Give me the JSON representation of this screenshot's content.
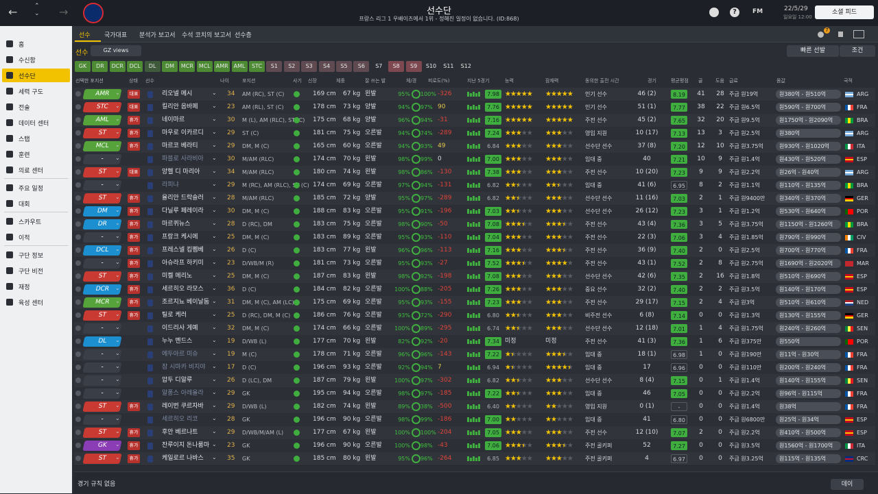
{
  "header": {
    "title": "선수단",
    "subtitle": "프랑스 리그 1 우배이즈에서 1위 - 정해진 일정이 없습니다. (ID:868)",
    "fm_label": "FM",
    "date": "22/5/29",
    "time": "일요일 12:00",
    "social_button": "소셜 피드",
    "notification_count": 7
  },
  "sidebar": [
    [
      "홈",
      "수신함",
      "선수단",
      "세력 구도",
      "전술",
      "데이터 센터",
      "스탭",
      "훈련",
      "의료 센터"
    ],
    [
      "주요 일정",
      "대회"
    ],
    [
      "스카우트",
      "이적"
    ],
    [
      "구단 정보",
      "구단 비전",
      "재정",
      "육성 센터"
    ]
  ],
  "sidebar_active": [
    0,
    2
  ],
  "subnav": [
    "선수",
    "국가대표",
    "분석가 보고서",
    "수석 코치의 보고서",
    "선수층"
  ],
  "toolbar": {
    "section": "선수",
    "view": "GZ views",
    "quick_pick": "빠른 선발",
    "filter": "조건"
  },
  "position_filters": [
    {
      "label": "GK",
      "color": "#4d8a34"
    },
    {
      "label": "DR",
      "color": "#4d8a34"
    },
    {
      "label": "DCR",
      "color": "#4d8a34"
    },
    {
      "label": "DCL",
      "color": "#4d8a34"
    },
    {
      "label": "DL",
      "color": "#3f5a3a"
    },
    {
      "label": "DM",
      "color": "#4d8a34"
    },
    {
      "label": "MCR",
      "color": "#4d8a34"
    },
    {
      "label": "MCL",
      "color": "#4d8a34"
    },
    {
      "label": "AMR",
      "color": "#4d8a34"
    },
    {
      "label": "AML",
      "color": "#4d8a34"
    },
    {
      "label": "STC",
      "color": "#4d8a34"
    },
    {
      "label": "S1",
      "color": "#5e4a50"
    },
    {
      "label": "S2",
      "color": "#5e4a50"
    },
    {
      "label": "S3",
      "color": "#5e4a50"
    },
    {
      "label": "S4",
      "color": "#5e4a50"
    },
    {
      "label": "S5",
      "color": "#5e4a50"
    },
    {
      "label": "S6",
      "color": "#5e4a50"
    },
    {
      "label": "S7"
    },
    {
      "label": "S8",
      "color": "#7d4850"
    },
    {
      "label": "S9",
      "color": "#7d4850"
    },
    {
      "label": "S10"
    },
    {
      "label": "S11"
    },
    {
      "label": "S12"
    }
  ],
  "columns": [
    "선택한 포지션",
    "상태",
    "선수",
    "나이",
    "포지션",
    "사기",
    "신장",
    "체중",
    "잘 쓰는 발",
    "체/경",
    "피로도(%)",
    "지난 5경기",
    "능력",
    "잠재력",
    "동의한 출전 시간",
    "경기",
    "평균평점",
    "골",
    "도움",
    "급료",
    "몸값",
    "국적"
  ],
  "flags": {
    "ARG": {
      "dir": "h",
      "colors": [
        "#75aadb",
        "#ffffff",
        "#75aadb"
      ]
    },
    "FRA": {
      "dir": "v",
      "colors": [
        "#0055a4",
        "#ffffff",
        "#ef4135"
      ]
    },
    "BRA": {
      "dir": "v",
      "colors": [
        "#009c3b",
        "#ffdf00",
        "#009c3b"
      ]
    },
    "ITA": {
      "dir": "v",
      "colors": [
        "#009246",
        "#ffffff",
        "#ce2b37"
      ]
    },
    "ESP": {
      "dir": "h",
      "colors": [
        "#c60b1e",
        "#ffc400",
        "#c60b1e"
      ]
    },
    "GER": {
      "dir": "h",
      "colors": [
        "#000000",
        "#dd0000",
        "#ffce00"
      ]
    },
    "POR": {
      "dir": "v",
      "colors": [
        "#006600",
        "#ff0000",
        "#ff0000"
      ]
    },
    "CIV": {
      "dir": "v",
      "colors": [
        "#f77f00",
        "#ffffff",
        "#009e60"
      ]
    },
    "MAR": {
      "dir": "v",
      "colors": [
        "#c1272d",
        "#c1272d",
        "#c1272d"
      ]
    },
    "NED": {
      "dir": "h",
      "colors": [
        "#ae1c28",
        "#ffffff",
        "#21468b"
      ]
    },
    "SEN": {
      "dir": "v",
      "colors": [
        "#00853f",
        "#fdef42",
        "#e31b23"
      ]
    },
    "CRC": {
      "dir": "h",
      "colors": [
        "#002b7f",
        "#ce1126",
        "#002b7f"
      ]
    }
  },
  "rows": [
    {
      "sel": "AMR",
      "sel_color": "#55a33a",
      "status": "대표",
      "name": "리오넬 메시",
      "age": 34,
      "pos": "AM (RC), ST (C)",
      "height": "169 cm",
      "weight": "67 kg",
      "foot": "왼발",
      "cond": "95%",
      "sharp": "100%",
      "fatigue": -326,
      "last5": "7.98",
      "ability": 5,
      "potential": 5,
      "time": "인기 선수",
      "apps": "46 (2)",
      "avg": "8.19",
      "goals": 41,
      "assists": 28,
      "wage": "주급 원19억",
      "value": "원380억 - 원510억",
      "nat": "ARG"
    },
    {
      "sel": "STC",
      "sel_color": "#c93a32",
      "status": "대표",
      "name": "킬리안 음바페",
      "age": 23,
      "pos": "AM (RL), ST (C)",
      "height": "178 cm",
      "weight": "73 kg",
      "foot": "양발",
      "cond": "94%",
      "sharp": "97%",
      "fatigue": 90,
      "last5": "7.76",
      "ability": 5,
      "potential": 5,
      "time": "인기 선수",
      "apps": "51 (1)",
      "avg": "7.77",
      "goals": 38,
      "assists": 22,
      "wage": "주급 원6.5억",
      "value": "원590억 - 원700억",
      "nat": "FRA"
    },
    {
      "sel": "AML",
      "sel_color": "#55a33a",
      "status": "휴가",
      "name": "네이마르",
      "age": 30,
      "pos": "M (L), AM (RLC), ST (C)",
      "height": "175 cm",
      "weight": "68 kg",
      "foot": "양발",
      "cond": "96%",
      "sharp": "94%",
      "fatigue": -31,
      "last5": "7.16",
      "ability": 5,
      "potential": 5,
      "time": "주전 선수",
      "apps": "45 (2)",
      "avg": "7.65",
      "goals": 32,
      "assists": 20,
      "wage": "주급 원9.5억",
      "value": "원1750억 - 원2090억",
      "nat": "BRA"
    },
    {
      "sel": "ST",
      "sel_color": "#c93a32",
      "status": "휴가",
      "name": "마우로 이카르디",
      "age": 29,
      "pos": "ST (C)",
      "height": "181 cm",
      "weight": "75 kg",
      "foot": "오른발",
      "cond": "94%",
      "sharp": "74%",
      "fatigue": -289,
      "last5": "7.24",
      "ability": 3,
      "potential": 3,
      "time": "영입 지원",
      "apps": "10 (17)",
      "avg": "7.13",
      "goals": 13,
      "assists": 3,
      "wage": "주급 원2.5억",
      "value": "원380억",
      "nat": "ARG"
    },
    {
      "sel": "MCL",
      "sel_color": "#55a33a",
      "status": "휴가",
      "name": "마르코 베라티",
      "age": 29,
      "pos": "DM, M (C)",
      "height": "165 cm",
      "weight": "60 kg",
      "foot": "오른발",
      "cond": "94%",
      "sharp": "93%",
      "fatigue": 49,
      "last5": "6.84",
      "ability": 3,
      "potential": 3,
      "time": "선수단 선수",
      "apps": "37 (8)",
      "avg": "7.20",
      "goals": 12,
      "assists": 10,
      "wage": "주급 원3.75억",
      "value": "원930억 - 원1020억",
      "nat": "ITA"
    },
    {
      "sel": "-",
      "sel_color": "#3a3e46",
      "name": "파블로 사라비아",
      "dim": true,
      "age": 30,
      "pos": "M/AM (RLC)",
      "height": "174 cm",
      "weight": "70 kg",
      "foot": "왼발",
      "cond": "98%",
      "sharp": "99%",
      "fatigue": 0,
      "last5": "7.00",
      "ability": 3,
      "potential": 3,
      "time": "임대 중",
      "apps": "40",
      "avg": "7.21",
      "goals": 10,
      "assists": 9,
      "wage": "주급 원1.4억",
      "value": "원430억 - 원520억",
      "nat": "ESP"
    },
    {
      "sel": "ST",
      "sel_color": "#c93a32",
      "status": "대표",
      "name": "앙헬 디 마리아",
      "age": 34,
      "pos": "M/AM (RLC)",
      "height": "180 cm",
      "weight": "74 kg",
      "foot": "왼발",
      "cond": "98%",
      "sharp": "86%",
      "fatigue": -130,
      "last5": "7.38",
      "ability": 3,
      "potential": 3,
      "time": "주전 선수",
      "apps": "10 (20)",
      "avg": "7.23",
      "goals": 9,
      "assists": 9,
      "wage": "주급 원2.2억",
      "value": "원26억 - 원40억",
      "nat": "ARG"
    },
    {
      "sel": "-",
      "sel_color": "#3a3e46",
      "name": "라피냐",
      "dim": true,
      "age": 29,
      "pos": "M (RC), AM (RLC), ST (C)",
      "height": "174 cm",
      "weight": "69 kg",
      "foot": "오른발",
      "cond": "97%",
      "sharp": "94%",
      "fatigue": -131,
      "last5": "6.82",
      "ability": 2.5,
      "potential": 2.5,
      "time": "임대 중",
      "apps": "41 (6)",
      "avg": "6.95",
      "goals": 8,
      "assists": 2,
      "wage": "주급 원1.1억",
      "value": "원110억 - 원135억",
      "nat": "BRA"
    },
    {
      "sel": "ST",
      "sel_color": "#c93a32",
      "status": "휴가",
      "name": "율리안 드락슬러",
      "age": 28,
      "pos": "M/AM (RLC)",
      "height": "185 cm",
      "weight": "72 kg",
      "foot": "양발",
      "cond": "95%",
      "sharp": "97%",
      "fatigue": -289,
      "last5": "6.82",
      "ability": 2.5,
      "potential": 3,
      "time": "선수단 선수",
      "apps": "11 (16)",
      "avg": "7.03",
      "goals": 2,
      "assists": 1,
      "wage": "주급 원9400만",
      "value": "원340억 - 원370억",
      "nat": "GER"
    },
    {
      "sel": "DM",
      "sel_color": "#1c8fd0",
      "status": "휴가",
      "name": "다닐루 페레이라",
      "age": 30,
      "pos": "DM, M (C)",
      "height": "188 cm",
      "weight": "83 kg",
      "foot": "오른발",
      "cond": "95%",
      "sharp": "91%",
      "fatigue": -196,
      "last5": "7.03",
      "ability": 2.5,
      "potential": 3,
      "time": "선수단 선수",
      "apps": "26 (12)",
      "avg": "7.23",
      "goals": 3,
      "assists": 1,
      "wage": "주급 원1.2억",
      "value": "원530억 - 원640억",
      "nat": "POR"
    },
    {
      "sel": "DR",
      "sel_color": "#1c8fd0",
      "status": "휴가",
      "name": "마르퀴뉴스",
      "age": 28,
      "pos": "D (RC), DM",
      "height": "183 cm",
      "weight": "75 kg",
      "foot": "오른발",
      "cond": "98%",
      "sharp": "90%",
      "fatigue": -50,
      "last5": "7.08",
      "ability": 3.5,
      "potential": 3.5,
      "time": "주전 선수",
      "apps": "43 (4)",
      "avg": "7.36",
      "goals": 3,
      "assists": 5,
      "wage": "주급 원3.75억",
      "value": "원1150억 - 원1260억",
      "nat": "BRA"
    },
    {
      "sel": "-",
      "sel_color": "#3a3e46",
      "status": "휴가",
      "name": "프랑크 케시에",
      "age": 25,
      "pos": "DM, M (C)",
      "height": "183 cm",
      "weight": "89 kg",
      "foot": "오른발",
      "cond": "95%",
      "sharp": "93%",
      "fatigue": -110,
      "last5": "7.04",
      "ability": 3,
      "potential": 3,
      "time": "주전 선수",
      "apps": "22 (3)",
      "avg": "7.06",
      "goals": 3,
      "assists": 4,
      "wage": "주급 원1.85억",
      "value": "원790억 - 원990억",
      "nat": "CIV"
    },
    {
      "sel": "DCL",
      "sel_color": "#1c8fd0",
      "status": "휴가",
      "name": "프레스넬 킴펨베",
      "age": 26,
      "pos": "D (C)",
      "height": "183 cm",
      "weight": "77 kg",
      "foot": "왼발",
      "cond": "96%",
      "sharp": "96%",
      "fatigue": -113,
      "last5": "7.16",
      "ability": 3,
      "potential": 3.5,
      "time": "주전 선수",
      "apps": "36 (9)",
      "avg": "7.40",
      "goals": 2,
      "assists": 0,
      "wage": "주급 원2.5억",
      "value": "원700억 - 원770억",
      "nat": "FRA"
    },
    {
      "sel": "-",
      "sel_color": "#3a3e46",
      "status": "휴가",
      "name": "아슈라프 하키미",
      "age": 23,
      "pos": "D/WB/M (R)",
      "height": "181 cm",
      "weight": "73 kg",
      "foot": "오른발",
      "cond": "95%",
      "sharp": "93%",
      "fatigue": -27,
      "last5": "7.52",
      "ability": 3.5,
      "potential": 4,
      "time": "주전 선수",
      "apps": "43 (1)",
      "avg": "7.52",
      "goals": 2,
      "assists": 8,
      "wage": "주급 원2.75억",
      "value": "원1690억 - 원2020억",
      "nat": "MAR"
    },
    {
      "sel": "ST",
      "sel_color": "#c93a32",
      "status": "휴가",
      "name": "미켈 메리노",
      "age": 25,
      "pos": "DM, M (C)",
      "height": "187 cm",
      "weight": "83 kg",
      "foot": "왼발",
      "cond": "98%",
      "sharp": "92%",
      "fatigue": -198,
      "last5": "7.08",
      "ability": 3,
      "potential": 3,
      "time": "선수단 선수",
      "apps": "42 (6)",
      "avg": "7.35",
      "goals": 2,
      "assists": 16,
      "wage": "주급 원1.8억",
      "value": "원510억 - 원690억",
      "nat": "ESP"
    },
    {
      "sel": "DCR",
      "sel_color": "#1c8fd0",
      "status": "휴가",
      "name": "세르히오 라모스",
      "age": 36,
      "pos": "D (C)",
      "height": "184 cm",
      "weight": "82 kg",
      "foot": "오른발",
      "cond": "100%",
      "sharp": "88%",
      "fatigue": -205,
      "last5": "7.26",
      "ability": 3,
      "potential": 3,
      "time": "중요 선수",
      "apps": "32 (2)",
      "avg": "7.40",
      "goals": 2,
      "assists": 2,
      "wage": "주급 원3.5억",
      "value": "원140억 - 원170억",
      "nat": "ESP"
    },
    {
      "sel": "MCR",
      "sel_color": "#55a33a",
      "status": "휴가",
      "name": "조르지뇨 베이날둠",
      "age": 31,
      "pos": "DM, M (C), AM (LC)",
      "height": "175 cm",
      "weight": "69 kg",
      "foot": "오른발",
      "cond": "95%",
      "sharp": "93%",
      "fatigue": -155,
      "last5": "7.23",
      "ability": 3,
      "potential": 3,
      "time": "주전 선수",
      "apps": "29 (17)",
      "avg": "7.15",
      "goals": 2,
      "assists": 4,
      "wage": "주급 원3억",
      "value": "원510억 - 원610억",
      "nat": "NED"
    },
    {
      "sel": "ST",
      "sel_color": "#c93a32",
      "status": "휴가",
      "name": "틸로 케러",
      "age": 25,
      "pos": "D (RC), DM, M (C)",
      "height": "186 cm",
      "weight": "76 kg",
      "foot": "오른발",
      "cond": "93%",
      "sharp": "72%",
      "fatigue": -290,
      "last5": "6.80",
      "ability": 2.5,
      "potential": 3,
      "time": "비주전 선수",
      "apps": "6 (8)",
      "avg": "7.14",
      "goals": 0,
      "assists": 0,
      "wage": "주급 원1.3억",
      "value": "원130억 - 원155억",
      "nat": "GER"
    },
    {
      "sel": "-",
      "sel_color": "#3a3e46",
      "name": "이드리사 게예",
      "age": 32,
      "pos": "DM, M (C)",
      "height": "174 cm",
      "weight": "66 kg",
      "foot": "오른발",
      "cond": "100%",
      "sharp": "89%",
      "fatigue": -295,
      "last5": "6.74",
      "ability": 2.5,
      "potential": 3,
      "time": "선수단 선수",
      "apps": "12 (18)",
      "avg": "7.01",
      "goals": 1,
      "assists": 4,
      "wage": "주급 원1.75억",
      "value": "원240억 - 원260억",
      "nat": "SEN"
    },
    {
      "sel": "DL",
      "sel_color": "#1c8fd0",
      "name": "누누 멘드스",
      "age": 19,
      "pos": "D/WB (L)",
      "height": "177 cm",
      "weight": "70 kg",
      "foot": "왼발",
      "cond": "82%",
      "sharp": "92%",
      "fatigue": -20,
      "last5": "7.34",
      "ability": "미정",
      "potential": "미정",
      "time": "주전 선수",
      "apps": "41 (3)",
      "avg": "7.36",
      "goals": 1,
      "assists": 6,
      "wage": "주급 원375만",
      "value": "원550억",
      "nat": "POR"
    },
    {
      "sel": "-",
      "sel_color": "#3a3e46",
      "name": "에두아르 미슈",
      "dim": true,
      "age": 19,
      "pos": "M (C)",
      "height": "178 cm",
      "weight": "71 kg",
      "foot": "오른발",
      "cond": "96%",
      "sharp": "96%",
      "fatigue": -143,
      "last5": "7.22",
      "ability": 1.5,
      "potential": 3.5,
      "time": "임대 중",
      "apps": "18 (1)",
      "avg": "6.98",
      "goals": 1,
      "assists": 0,
      "wage": "주급 원190만",
      "value": "원11억 - 원30억",
      "nat": "FRA"
    },
    {
      "sel": "-",
      "sel_color": "#3a3e46",
      "name": "잠 시마카 비지야",
      "dim": true,
      "age": 17,
      "pos": "D (C)",
      "height": "196 cm",
      "weight": "93 kg",
      "foot": "오른발",
      "cond": "92%",
      "sharp": "94%",
      "fatigue": 7,
      "last5": "6.94",
      "ability": 1.5,
      "potential": 4.5,
      "time": "임대 중",
      "apps": "17",
      "avg": "6.96",
      "goals": 0,
      "assists": 0,
      "wage": "주급 원110만",
      "value": "원200억 - 원240억",
      "nat": "FRA"
    },
    {
      "sel": "-",
      "sel_color": "#3a3e46",
      "name": "압두 디알루",
      "age": 26,
      "pos": "D (LC), DM",
      "height": "187 cm",
      "weight": "79 kg",
      "foot": "왼발",
      "cond": "100%",
      "sharp": "97%",
      "fatigue": -302,
      "last5": "6.82",
      "ability": 2.5,
      "potential": 3,
      "time": "선수단 선수",
      "apps": "8 (4)",
      "avg": "7.15",
      "goals": 0,
      "assists": 1,
      "wage": "주급 원1.4억",
      "value": "원140억 - 원155억",
      "nat": "SEN"
    },
    {
      "sel": "-",
      "sel_color": "#3a3e46",
      "name": "알퐁스 아레올라",
      "dim": true,
      "age": 29,
      "pos": "GK",
      "height": "195 cm",
      "weight": "94 kg",
      "foot": "오른발",
      "cond": "98%",
      "sharp": "97%",
      "fatigue": -185,
      "last5": "7.22",
      "ability": 2.5,
      "potential": 3,
      "time": "임대 중",
      "apps": "46",
      "avg": "7.05",
      "goals": 0,
      "assists": 0,
      "wage": "주급 원2.2억",
      "value": "원96억 - 원115억",
      "nat": "FRA"
    },
    {
      "sel": "ST",
      "sel_color": "#c93a32",
      "status": "휴가",
      "name": "레이번 쿠르자바",
      "age": 29,
      "pos": "D/WB (L)",
      "height": "182 cm",
      "weight": "74 kg",
      "foot": "왼발",
      "cond": "89%",
      "sharp": "38%",
      "fatigue": -500,
      "last5": "6.40",
      "ability": 2,
      "potential": 2,
      "time": "영입 지원",
      "apps": "0 (1)",
      "avg": "-",
      "goals": 0,
      "assists": 0,
      "wage": "주급 원1.4억",
      "value": "원38억",
      "nat": "FRA"
    },
    {
      "sel": "-",
      "sel_color": "#3a3e46",
      "name": "세르히오 리코",
      "dim": true,
      "age": 28,
      "pos": "GK",
      "height": "196 cm",
      "weight": "90 kg",
      "foot": "오른발",
      "cond": "98%",
      "sharp": "99%",
      "fatigue": -186,
      "last5": "7.00",
      "ability": 2,
      "potential": 2,
      "time": "임대 중",
      "apps": "41",
      "avg": "6.80",
      "goals": 0,
      "assists": 0,
      "wage": "주급 원6800만",
      "value": "원25억 - 원34억",
      "nat": "ESP"
    },
    {
      "sel": "ST",
      "sel_color": "#c93a32",
      "status": "휴가",
      "name": "후안 베르나트",
      "age": 29,
      "pos": "D/WB/M/AM (L)",
      "height": "177 cm",
      "weight": "67 kg",
      "foot": "왼발",
      "cond": "100%",
      "sharp": "100%",
      "fatigue": -204,
      "last5": "7.05",
      "ability": 3,
      "potential": 3,
      "time": "주전 선수",
      "apps": "12 (10)",
      "avg": "7.07",
      "goals": 2,
      "assists": 0,
      "wage": "주급 원2.2억",
      "value": "원410억 - 원500억",
      "nat": "ESP"
    },
    {
      "sel": "GK",
      "sel_color": "#8a3db5",
      "status": "휴가",
      "name": "잔루이지 돈나룸마",
      "age": 23,
      "pos": "GK",
      "height": "196 cm",
      "weight": "90 kg",
      "foot": "오른발",
      "cond": "100%",
      "sharp": "98%",
      "fatigue": -43,
      "last5": "7.06",
      "ability": 3.5,
      "potential": 3.5,
      "time": "주전 골키퍼",
      "apps": "52",
      "avg": "7.27",
      "goals": 0,
      "assists": 0,
      "wage": "주급 원3.5억",
      "value": "원1560억 - 원1700억",
      "nat": "ITA"
    },
    {
      "sel": "ST",
      "sel_color": "#c93a32",
      "status": "휴가",
      "name": "케일로르 나바스",
      "age": 35,
      "pos": "GK",
      "height": "185 cm",
      "weight": "80 kg",
      "foot": "왼발",
      "cond": "95%",
      "sharp": "96%",
      "fatigue": -264,
      "last5": "6.85",
      "ability": 3,
      "potential": 3,
      "time": "주전 골키퍼",
      "apps": "4",
      "avg": "6.97",
      "goals": 0,
      "assists": 0,
      "wage": "주급 원3.25억",
      "value": "원115억 - 원135억",
      "nat": "CRC"
    }
  ],
  "footer": {
    "left": "경기 규칙 없음",
    "right": "데이"
  }
}
